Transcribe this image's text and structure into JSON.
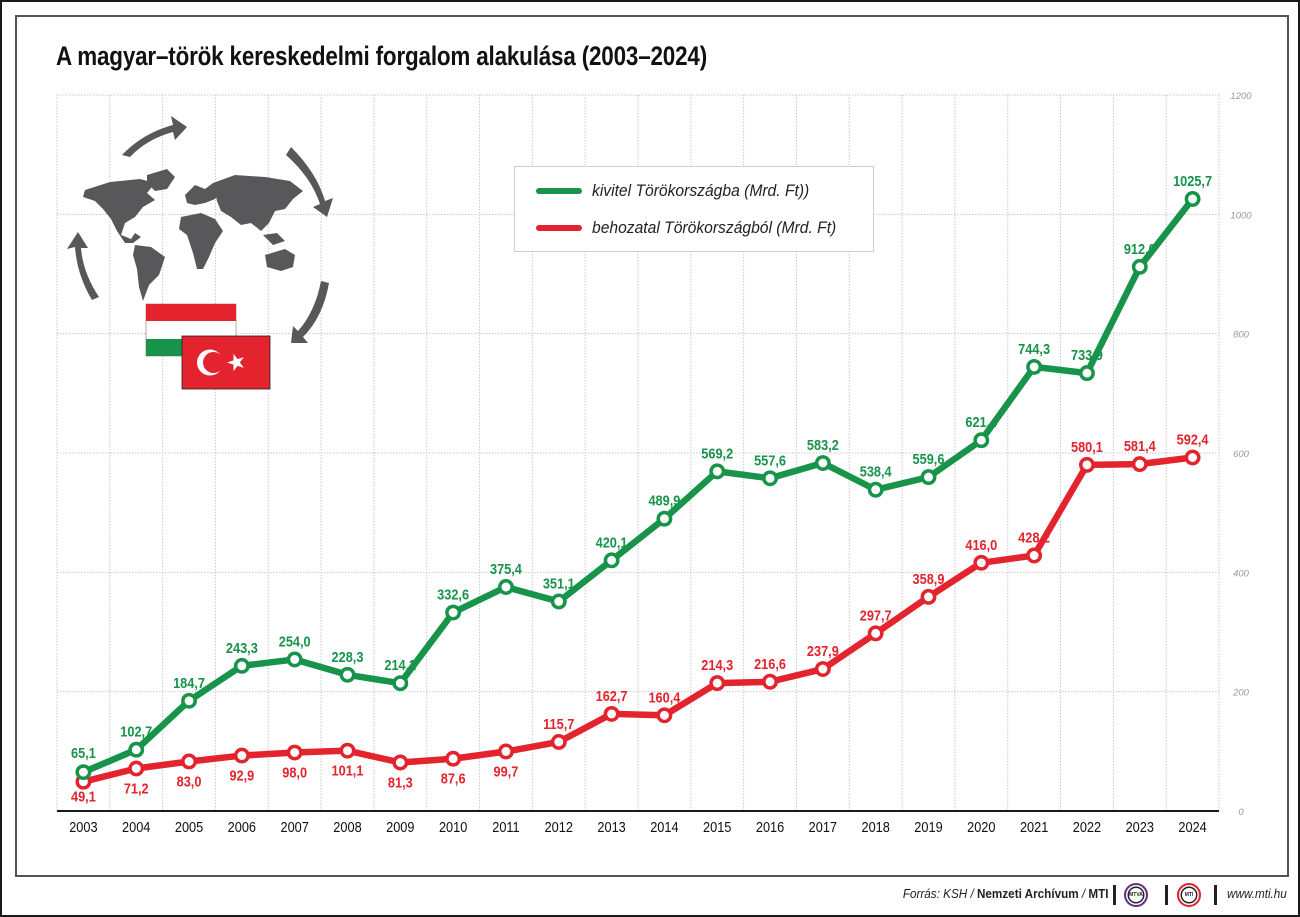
{
  "title": "A magyar–török kereskedelmi forgalom alakulása (2003–2024)",
  "legend": {
    "items": [
      {
        "label": "kivitel Törökországba (Mrd. Ft))",
        "color": "#17934a"
      },
      {
        "label": "behozatal Törökországból (Mrd. Ft)",
        "color": "#e3232d"
      }
    ]
  },
  "illustration": {
    "icons": [
      "world-map-icon",
      "circular-arrows-icon",
      "hungary-flag-icon",
      "turkey-flag-icon"
    ]
  },
  "footer": {
    "source_prefix": "Forrás: KSH / ",
    "source_bold": "Nemzeti Archívum",
    "source_sep": " / ",
    "source_mti": "MTI",
    "logo1": "MTVA",
    "logo2": "MTI",
    "url": "www.mti.hu"
  },
  "chart_data": {
    "type": "line",
    "title": "A magyar–török kereskedelmi forgalom alakulása (2003–2024)",
    "xlabel": "",
    "ylabel": "",
    "categories": [
      "2003",
      "2004",
      "2005",
      "2006",
      "2007",
      "2008",
      "2009",
      "2010",
      "2011",
      "2012",
      "2013",
      "2014",
      "2015",
      "2016",
      "2017",
      "2018",
      "2019",
      "2020",
      "2021",
      "2022",
      "2023",
      "2024"
    ],
    "ylim": [
      0,
      1200
    ],
    "yticks": [
      0,
      200,
      400,
      600,
      800,
      1000,
      1200
    ],
    "ytick_labels": [
      "0",
      "200",
      "400",
      "600",
      "800",
      "1000",
      "1200"
    ],
    "yaxis_position": "right",
    "grid": true,
    "legend_position": "top-center",
    "series": [
      {
        "name": "kivitel Törökországba (Mrd. Ft))",
        "color": "#17934a",
        "values": [
          65.1,
          102.7,
          184.7,
          243.3,
          254.0,
          228.3,
          214.2,
          332.6,
          375.4,
          351.1,
          420.1,
          489.9,
          569.2,
          557.6,
          583.2,
          538.4,
          559.6,
          621.4,
          744.3,
          733.9,
          912.0,
          1025.7
        ],
        "labels": [
          "65,1",
          "102,7",
          "184,7",
          "243,3",
          "254,0",
          "228,3",
          "214,2",
          "332,6",
          "375,4",
          "351,1",
          "420,1",
          "489,9",
          "569,2",
          "557,6",
          "583,2",
          "538,4",
          "559,6",
          "621,4",
          "744,3",
          "733,9",
          "912,0",
          "1025,7"
        ]
      },
      {
        "name": "behozatal Törökországból (Mrd. Ft)",
        "color": "#e3232d",
        "values": [
          49.1,
          71.2,
          83.0,
          92.9,
          98.0,
          101.1,
          81.3,
          87.6,
          99.7,
          115.7,
          162.7,
          160.4,
          214.3,
          216.6,
          237.9,
          297.7,
          358.9,
          416.0,
          428.2,
          580.1,
          581.4,
          592.4
        ],
        "labels": [
          "49,1",
          "71,2",
          "83,0",
          "92,9",
          "98,0",
          "101,1",
          "81,3",
          "87,6",
          "99,7",
          "115,7",
          "162,7",
          "160,4",
          "214,3",
          "216,6",
          "237,9",
          "297,7",
          "358,9",
          "416,0",
          "428,2",
          "580,1",
          "581,4",
          "592,4"
        ]
      }
    ]
  }
}
